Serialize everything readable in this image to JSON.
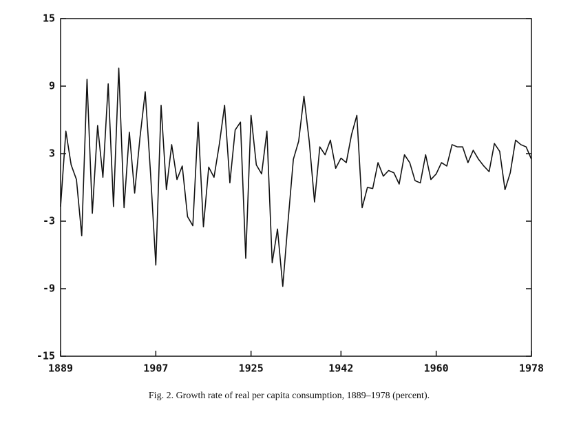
{
  "chart_data": {
    "type": "line",
    "caption": "Fig. 2.  Growth rate of real per capita consumption, 1889–1978 (percent).",
    "x": [
      1889,
      1890,
      1891,
      1892,
      1893,
      1894,
      1895,
      1896,
      1897,
      1898,
      1899,
      1900,
      1901,
      1902,
      1903,
      1904,
      1905,
      1906,
      1907,
      1908,
      1909,
      1910,
      1911,
      1912,
      1913,
      1914,
      1915,
      1916,
      1917,
      1918,
      1919,
      1920,
      1921,
      1922,
      1923,
      1924,
      1925,
      1926,
      1927,
      1928,
      1929,
      1930,
      1931,
      1932,
      1933,
      1934,
      1935,
      1936,
      1937,
      1938,
      1939,
      1940,
      1941,
      1942,
      1943,
      1944,
      1945,
      1946,
      1947,
      1948,
      1949,
      1950,
      1951,
      1952,
      1953,
      1954,
      1955,
      1956,
      1957,
      1958,
      1959,
      1960,
      1961,
      1962,
      1963,
      1964,
      1965,
      1966,
      1967,
      1968,
      1969,
      1970,
      1971,
      1972,
      1973,
      1974,
      1975,
      1976,
      1977,
      1978
    ],
    "series": [
      {
        "color": "#111111",
        "values": [
          -1.7,
          5.0,
          2.0,
          0.7,
          -4.3,
          9.6,
          -2.3,
          5.5,
          0.9,
          9.2,
          -1.7,
          10.6,
          -1.8,
          4.9,
          -0.5,
          4.4,
          8.5,
          1.3,
          -6.9,
          7.3,
          -0.2,
          3.8,
          0.7,
          1.9,
          -2.6,
          -3.4,
          5.8,
          -3.5,
          1.8,
          0.9,
          3.8,
          7.3,
          0.4,
          5.1,
          5.8,
          -6.3,
          6.4,
          2.0,
          1.2,
          5.0,
          -6.7,
          -3.7,
          -8.8,
          -3.0,
          2.5,
          4.1,
          8.1,
          4.1,
          -1.3,
          3.6,
          2.9,
          4.2,
          1.7,
          2.6,
          2.2,
          4.7,
          6.4,
          -1.8,
          0.0,
          -0.1,
          2.2,
          1.0,
          1.5,
          1.3,
          0.3,
          2.9,
          2.2,
          0.6,
          0.4,
          2.9,
          0.7,
          1.2,
          2.2,
          1.9,
          3.8,
          3.6,
          3.6,
          2.2,
          3.3,
          2.5,
          1.9,
          1.4,
          3.9,
          3.2,
          -0.2,
          1.3,
          4.2,
          3.8,
          3.6,
          2.5
        ]
      }
    ],
    "xlim": [
      1889,
      1978
    ],
    "xticks": [
      1889,
      1907,
      1925,
      1942,
      1960,
      1978
    ],
    "ylim": [
      -15,
      15
    ],
    "yticks": [
      -15,
      -9,
      -3,
      3,
      9,
      15
    ]
  }
}
